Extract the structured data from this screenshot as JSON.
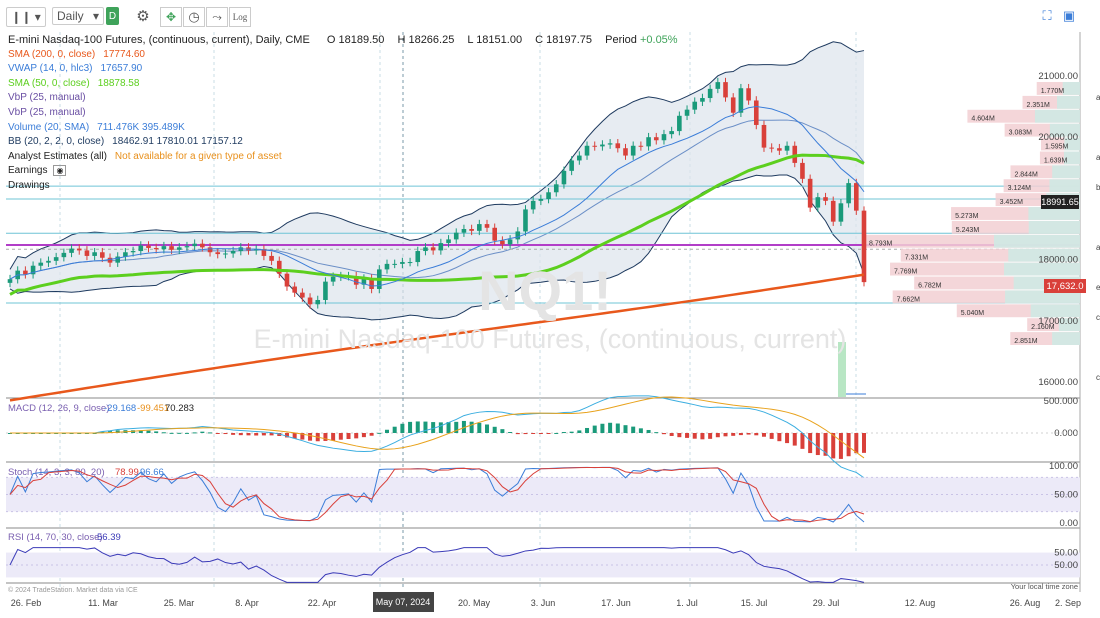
{
  "toolbar": {
    "bar_type_icon": "candlestick-icon",
    "interval": "Daily",
    "d_badge": "D",
    "log_label": "Log",
    "icons": [
      "settings-icon",
      "crosshair-icon",
      "clock-icon",
      "drawing-tool-icon",
      "log-scale-icon",
      "fullscreen-icon",
      "camera-icon"
    ]
  },
  "header": {
    "title": "E-mini Nasdaq-100 Futures, (continuous, current), Daily, CME",
    "open_label": "O",
    "open": "18189.50",
    "high_label": "H",
    "high": "18266.25",
    "low_label": "L",
    "low": "18151.00",
    "close_label": "C",
    "close": "18197.75",
    "period_label": "Period",
    "period": "+0.05%"
  },
  "legend": [
    {
      "label": "SMA (200, 0, close)",
      "values": "17774.60",
      "color": "#e8581c"
    },
    {
      "label": "VWAP (14, 0, hlc3)",
      "values": "17657.90",
      "color": "#3b7dd8"
    },
    {
      "label": "SMA (50, 0, close)",
      "values": "18878.58",
      "color": "#5ccf1e"
    },
    {
      "label": "VbP (25, manual)",
      "values": "",
      "color": "#6a4fa3"
    },
    {
      "label": "VbP (25, manual)",
      "values": "",
      "color": "#6a4fa3"
    },
    {
      "label": "Volume (20, SMA)",
      "values": "711.476K 395.489K",
      "color": "#3b7dd8"
    },
    {
      "label": "BB (20, 2, 2, 0, close)",
      "values": "18462.91 17810.01 17157.12",
      "color": "#1e3a5f"
    },
    {
      "label": "Analyst Estimates (all)",
      "values": "Not available for a given type of asset",
      "color": "#222",
      "value_color": "#e8901c"
    },
    {
      "label": "Earnings",
      "values": "",
      "color": "#222"
    },
    {
      "label": "Drawings",
      "values": "",
      "color": "#222"
    }
  ],
  "watermark": {
    "symbol": "NQ1!",
    "name": "E-mini Nasdaq-100 Futures, (continuous, current)"
  },
  "price_axis": {
    "ticks": [
      "21000.00",
      "20000.00",
      "19000.00",
      "18000.00",
      "17000.00",
      "16000.00"
    ],
    "current_price": "17,632.0",
    "line_price": "18991.65",
    "side_labels": [
      "a",
      "a",
      "b",
      "a",
      "e",
      "c",
      "c"
    ]
  },
  "macd": {
    "label": "MACD (12, 26, 9, close)",
    "values": [
      "-29.168",
      "-99.451",
      "70.283"
    ],
    "ticks": [
      "500.000",
      "0.000"
    ]
  },
  "stoch": {
    "label": "Stoch (14, 3, 3, 80, 20)",
    "values": [
      "78.99",
      "96.66"
    ],
    "ticks": [
      "100.00",
      "50.00",
      "0.00"
    ]
  },
  "rsi": {
    "label": "RSI (14, 70, 30, close)",
    "values": [
      "56.39"
    ],
    "ticks": [
      "50.00",
      "50.00"
    ]
  },
  "x_axis": {
    "ticks": [
      "26. Feb",
      "11. Mar",
      "25. Mar",
      "8. Apr",
      "22. Apr",
      "20. May",
      "3. Jun",
      "17. Jun",
      "1. Jul",
      "15. Jul",
      "29. Jul",
      "12. Aug",
      "26. Aug",
      "2. Sep"
    ],
    "crosshair_date": "May 07, 2024"
  },
  "footer": {
    "copyright": "© 2024 TradeStation. Market data via ICE",
    "local_time": "Your local time zone"
  },
  "chart_data": {
    "type": "candlestick",
    "title": "E-mini Nasdaq-100 Futures, (continuous, current), Daily, CME",
    "x_range": [
      "2024-02-20",
      "2024-09-05"
    ],
    "ylim": [
      15600,
      21600
    ],
    "close_series": [
      17680,
      17820,
      17760,
      17900,
      17950,
      17980,
      18040,
      18110,
      18180,
      18150,
      18060,
      18120,
      18030,
      17950,
      18050,
      18120,
      18140,
      18230,
      18190,
      18170,
      18220,
      18160,
      18200,
      18220,
      18260,
      18200,
      18120,
      18090,
      18100,
      18140,
      18200,
      18150,
      18170,
      18060,
      17980,
      17770,
      17560,
      17460,
      17380,
      17270,
      17340,
      17640,
      17720,
      17730,
      17730,
      17590,
      17690,
      17520,
      17840,
      17930,
      17930,
      17960,
      17960,
      18140,
      18200,
      18150,
      18270,
      18330,
      18440,
      18500,
      18470,
      18580,
      18520,
      18310,
      18250,
      18330,
      18460,
      18820,
      18960,
      18990,
      19100,
      19230,
      19450,
      19620,
      19700,
      19860,
      19850,
      19880,
      19900,
      19820,
      19700,
      19860,
      19850,
      20000,
      19950,
      20050,
      20100,
      20350,
      20450,
      20580,
      20640,
      20790,
      20900,
      20650,
      20400,
      20800,
      20600,
      20200,
      19830,
      19820,
      19780,
      19860,
      19580,
      19320,
      18850,
      19020,
      18960,
      18620,
      18920,
      19250,
      18800,
      17632
    ],
    "overlays": {
      "sma200": {
        "label": "SMA (200, 0, close)",
        "last": 17774.6
      },
      "vwap": {
        "label": "VWAP (14, 0, hlc3)",
        "last": 17657.9
      },
      "sma50": {
        "label": "SMA (50, 0, close)",
        "last": 18878.58
      },
      "bollinger": {
        "label": "BB (20, 2, 2, 0, close)",
        "upper": 18462.91,
        "middle": 17810.01,
        "lower": 17157.12
      }
    },
    "volume_profile_labels": [
      "1.770M",
      "2.351M",
      "4.604M",
      "3.083M",
      "1.595M",
      "1.639M",
      "2.844M",
      "3.124M",
      "3.452M",
      "5.273M",
      "5.243M",
      "8.793M",
      "7.331M",
      "7.769M",
      "6.782M",
      "7.662M",
      "5.040M",
      "2.160M",
      "2.851M"
    ],
    "price_levels": [
      19200,
      18990,
      18430,
      18170,
      17290
    ],
    "macd": {
      "macd": -29.168,
      "signal": -99.451,
      "histogram": 70.283
    },
    "stochastic": {
      "k": 78.99,
      "d": 96.66,
      "overbought": 80,
      "oversold": 20
    },
    "rsi": {
      "value": 56.39,
      "overbought": 70,
      "oversold": 30
    },
    "colors": {
      "up": "#1a9a7a",
      "down": "#d9403a",
      "sma200": "#e8581c",
      "sma50": "#5ccf1e",
      "vwap": "#3b7dd8",
      "bb": "#1e3a5f",
      "bb_fill": "#dde4ec",
      "magenta": "#b23ec8"
    }
  }
}
